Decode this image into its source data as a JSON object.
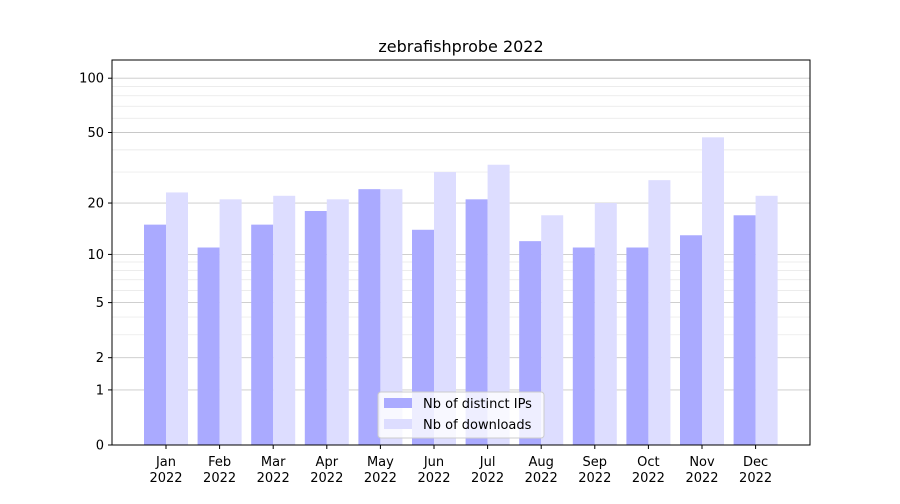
{
  "chart_data": {
    "type": "bar",
    "title": "zebrafishprobe 2022",
    "xlabel": "",
    "ylabel": "",
    "yscale": "log(1+y)",
    "ylim": [
      0,
      126
    ],
    "yticks": [
      0,
      1,
      2,
      5,
      10,
      20,
      50,
      100
    ],
    "grid": true,
    "legend_position": "bottom-center",
    "categories": [
      "Jan\n2022",
      "Feb\n2022",
      "Mar\n2022",
      "Apr\n2022",
      "May\n2022",
      "Jun\n2022",
      "Jul\n2022",
      "Aug\n2022",
      "Sep\n2022",
      "Oct\n2022",
      "Nov\n2022",
      "Dec\n2022"
    ],
    "series": [
      {
        "name": "Nb of distinct IPs",
        "color": "#aaaaff",
        "values": [
          15,
          11,
          15,
          18,
          24,
          14,
          21,
          12,
          11,
          11,
          13,
          17
        ]
      },
      {
        "name": "Nb of downloads",
        "color": "#ddddff",
        "values": [
          23,
          21,
          22,
          21,
          24,
          30,
          33,
          17,
          20,
          27,
          47,
          22
        ]
      }
    ]
  }
}
